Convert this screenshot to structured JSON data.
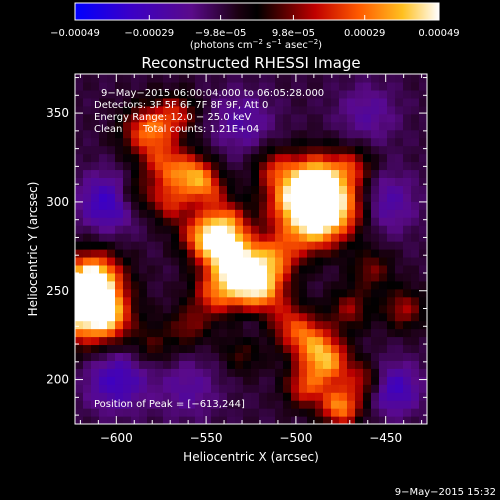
{
  "chart_data": {
    "type": "heatmap",
    "title": "Reconstructed RHESSI Image",
    "xlabel": "Heliocentric X (arcsec)",
    "ylabel": "Heliocentric Y (arcsec)",
    "xlim": [
      -623,
      -427
    ],
    "ylim": [
      175,
      372
    ],
    "xticks": [
      {
        "value": -600,
        "label": "−600"
      },
      {
        "value": -550,
        "label": "−550"
      },
      {
        "value": -500,
        "label": "−500"
      },
      {
        "value": -450,
        "label": "−450"
      }
    ],
    "yticks": [
      {
        "value": 200,
        "label": "200"
      },
      {
        "value": 250,
        "label": "250"
      },
      {
        "value": 300,
        "label": "300"
      },
      {
        "value": 350,
        "label": "350"
      }
    ],
    "colorbar": {
      "min": -0.00049,
      "max": 0.00049,
      "ticks": [
        {
          "value": -0.00049,
          "label": "−0.00049"
        },
        {
          "value": -0.00029,
          "label": "−0.00029"
        },
        {
          "value": -9.8e-05,
          "label": "−9.8e−05"
        },
        {
          "value": 9.8e-05,
          "label": "9.8e−05"
        },
        {
          "value": 0.00029,
          "label": "0.00029"
        },
        {
          "value": 0.00049,
          "label": "0.00049"
        }
      ],
      "units": "(photons cm",
      "units_exp1": "−2",
      "units_mid": " s",
      "units_exp2": "−1",
      "units_end": " asec",
      "units_exp3": "−2",
      "units_close": ")"
    },
    "annotations": {
      "time_range": "9−May−2015 06:00:04.000 to 06:05:28.000",
      "detectors": "Detectors: 3F 5F 6F 7F 8F 9F, Att 0",
      "energy": "Energy Range: 12.0 − 25.0 keV",
      "method": "Clean",
      "counts": "Total counts: 1.21E+04",
      "peak": "Position of Peak = [−613,244]"
    },
    "blobs": [
      {
        "x": -617,
        "y": 242,
        "amp": 1.7,
        "s": 14
      },
      {
        "x": -612,
        "y": 258,
        "amp": 0.9,
        "s": 10
      },
      {
        "x": -603,
        "y": 234,
        "amp": 0.5,
        "s": 8
      },
      {
        "x": -582,
        "y": 340,
        "amp": 0.9,
        "s": 10
      },
      {
        "x": -566,
        "y": 350,
        "amp": 0.55,
        "s": 8
      },
      {
        "x": -572,
        "y": 320,
        "amp": 0.7,
        "s": 9
      },
      {
        "x": -556,
        "y": 315,
        "amp": 0.9,
        "s": 8
      },
      {
        "x": -548,
        "y": 306,
        "amp": 0.5,
        "s": 7
      },
      {
        "x": -570,
        "y": 300,
        "amp": 0.65,
        "s": 8
      },
      {
        "x": -552,
        "y": 282,
        "amp": 0.8,
        "s": 9
      },
      {
        "x": -540,
        "y": 275,
        "amp": 1.0,
        "s": 10
      },
      {
        "x": -530,
        "y": 262,
        "amp": 1.15,
        "s": 11
      },
      {
        "x": -520,
        "y": 250,
        "amp": 1.0,
        "s": 10
      },
      {
        "x": -545,
        "y": 248,
        "amp": 0.7,
        "s": 9
      },
      {
        "x": -538,
        "y": 290,
        "amp": 0.6,
        "s": 8
      },
      {
        "x": -510,
        "y": 270,
        "amp": 0.7,
        "s": 9
      },
      {
        "x": -500,
        "y": 300,
        "amp": 1.1,
        "s": 12
      },
      {
        "x": -488,
        "y": 312,
        "amp": 1.2,
        "s": 11
      },
      {
        "x": -476,
        "y": 296,
        "amp": 1.0,
        "s": 11
      },
      {
        "x": -490,
        "y": 285,
        "amp": 0.8,
        "s": 10
      },
      {
        "x": -468,
        "y": 320,
        "amp": 0.55,
        "s": 8
      },
      {
        "x": -512,
        "y": 320,
        "amp": 0.5,
        "s": 8
      },
      {
        "x": -505,
        "y": 232,
        "amp": 0.6,
        "s": 9
      },
      {
        "x": -492,
        "y": 222,
        "amp": 0.75,
        "s": 9
      },
      {
        "x": -482,
        "y": 210,
        "amp": 0.95,
        "s": 9
      },
      {
        "x": -495,
        "y": 196,
        "amp": 0.7,
        "s": 8
      },
      {
        "x": -475,
        "y": 185,
        "amp": 1.0,
        "s": 8
      },
      {
        "x": -462,
        "y": 200,
        "amp": 0.55,
        "s": 7
      },
      {
        "x": -470,
        "y": 240,
        "amp": 0.5,
        "s": 8
      },
      {
        "x": -458,
        "y": 262,
        "amp": 0.45,
        "s": 8
      },
      {
        "x": -440,
        "y": 240,
        "amp": 0.55,
        "s": 8
      },
      {
        "x": -590,
        "y": 305,
        "amp": 0.4,
        "s": 7
      },
      {
        "x": -580,
        "y": 220,
        "amp": 0.35,
        "s": 8
      },
      {
        "x": -560,
        "y": 230,
        "amp": 0.45,
        "s": 8
      },
      {
        "x": -530,
        "y": 215,
        "amp": 0.35,
        "s": 8
      },
      {
        "x": -600,
        "y": 200,
        "amp": -0.55,
        "s": 12
      },
      {
        "x": -605,
        "y": 300,
        "amp": -0.6,
        "s": 11
      },
      {
        "x": -445,
        "y": 195,
        "amp": -0.55,
        "s": 10
      },
      {
        "x": -530,
        "y": 345,
        "amp": -0.35,
        "s": 12
      },
      {
        "x": -450,
        "y": 300,
        "amp": -0.4,
        "s": 12
      },
      {
        "x": -560,
        "y": 195,
        "amp": -0.3,
        "s": 12
      },
      {
        "x": -520,
        "y": 235,
        "amp": -0.25,
        "s": 10
      },
      {
        "x": -460,
        "y": 350,
        "amp": -0.3,
        "s": 12
      }
    ]
  },
  "footer": {
    "timestamp": "9−May−2015 15:32"
  }
}
